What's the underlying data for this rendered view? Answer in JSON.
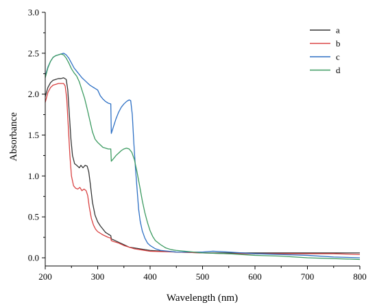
{
  "chart_data": {
    "type": "line",
    "title": "",
    "xlabel": "Wavelength (nm)",
    "ylabel": "Absorbance",
    "xlim": [
      200,
      800
    ],
    "ylim": [
      -0.1,
      3.0
    ],
    "x_ticks": [
      "200",
      "300",
      "400",
      "500",
      "600",
      "700",
      "800"
    ],
    "y_ticks": [
      "0.0",
      "0.5",
      "1.0",
      "1.5",
      "2.0",
      "2.5",
      "3.0"
    ],
    "grid": false,
    "legend_position": "top-right",
    "series": [
      {
        "name": "a",
        "color": "#333333",
        "points": [
          [
            200,
            1.97
          ],
          [
            205,
            2.08
          ],
          [
            210,
            2.14
          ],
          [
            215,
            2.17
          ],
          [
            220,
            2.18
          ],
          [
            225,
            2.19
          ],
          [
            230,
            2.19
          ],
          [
            235,
            2.2
          ],
          [
            240,
            2.18
          ],
          [
            243,
            2.05
          ],
          [
            246,
            1.75
          ],
          [
            249,
            1.45
          ],
          [
            252,
            1.25
          ],
          [
            256,
            1.15
          ],
          [
            260,
            1.13
          ],
          [
            265,
            1.1
          ],
          [
            268,
            1.13
          ],
          [
            272,
            1.1
          ],
          [
            276,
            1.13
          ],
          [
            280,
            1.12
          ],
          [
            283,
            1.05
          ],
          [
            286,
            0.9
          ],
          [
            290,
            0.68
          ],
          [
            295,
            0.52
          ],
          [
            300,
            0.44
          ],
          [
            305,
            0.39
          ],
          [
            310,
            0.35
          ],
          [
            315,
            0.31
          ],
          [
            320,
            0.29
          ],
          [
            325,
            0.27
          ],
          [
            326,
            0.23
          ],
          [
            330,
            0.22
          ],
          [
            340,
            0.19
          ],
          [
            350,
            0.16
          ],
          [
            360,
            0.13
          ],
          [
            370,
            0.12
          ],
          [
            380,
            0.11
          ],
          [
            400,
            0.09
          ],
          [
            450,
            0.07
          ],
          [
            500,
            0.06
          ],
          [
            550,
            0.06
          ],
          [
            600,
            0.06
          ],
          [
            650,
            0.06
          ],
          [
            700,
            0.06
          ],
          [
            750,
            0.06
          ],
          [
            800,
            0.06
          ]
        ]
      },
      {
        "name": "b",
        "color": "#d94040",
        "points": [
          [
            200,
            1.9
          ],
          [
            205,
            2.02
          ],
          [
            210,
            2.08
          ],
          [
            215,
            2.11
          ],
          [
            220,
            2.12
          ],
          [
            225,
            2.13
          ],
          [
            230,
            2.13
          ],
          [
            235,
            2.13
          ],
          [
            238,
            2.1
          ],
          [
            241,
            1.95
          ],
          [
            244,
            1.6
          ],
          [
            247,
            1.25
          ],
          [
            250,
            1.0
          ],
          [
            254,
            0.88
          ],
          [
            258,
            0.85
          ],
          [
            262,
            0.84
          ],
          [
            266,
            0.86
          ],
          [
            270,
            0.82
          ],
          [
            274,
            0.84
          ],
          [
            278,
            0.82
          ],
          [
            281,
            0.76
          ],
          [
            284,
            0.62
          ],
          [
            288,
            0.48
          ],
          [
            292,
            0.4
          ],
          [
            296,
            0.35
          ],
          [
            300,
            0.32
          ],
          [
            310,
            0.28
          ],
          [
            320,
            0.25
          ],
          [
            325,
            0.24
          ],
          [
            326,
            0.21
          ],
          [
            330,
            0.2
          ],
          [
            340,
            0.18
          ],
          [
            350,
            0.15
          ],
          [
            360,
            0.13
          ],
          [
            370,
            0.11
          ],
          [
            380,
            0.1
          ],
          [
            400,
            0.08
          ],
          [
            450,
            0.07
          ],
          [
            500,
            0.06
          ],
          [
            550,
            0.05
          ],
          [
            600,
            0.05
          ],
          [
            650,
            0.05
          ],
          [
            700,
            0.05
          ],
          [
            750,
            0.05
          ],
          [
            800,
            0.04
          ]
        ]
      },
      {
        "name": "c",
        "color": "#2c6fc4",
        "points": [
          [
            200,
            2.22
          ],
          [
            205,
            2.33
          ],
          [
            210,
            2.4
          ],
          [
            215,
            2.45
          ],
          [
            220,
            2.47
          ],
          [
            225,
            2.48
          ],
          [
            230,
            2.49
          ],
          [
            235,
            2.5
          ],
          [
            240,
            2.48
          ],
          [
            245,
            2.44
          ],
          [
            250,
            2.38
          ],
          [
            255,
            2.32
          ],
          [
            260,
            2.28
          ],
          [
            265,
            2.24
          ],
          [
            270,
            2.2
          ],
          [
            275,
            2.17
          ],
          [
            280,
            2.14
          ],
          [
            285,
            2.11
          ],
          [
            290,
            2.09
          ],
          [
            295,
            2.07
          ],
          [
            300,
            2.05
          ],
          [
            305,
            1.98
          ],
          [
            310,
            1.94
          ],
          [
            315,
            1.91
          ],
          [
            320,
            1.89
          ],
          [
            325,
            1.88
          ],
          [
            326,
            1.52
          ],
          [
            330,
            1.6
          ],
          [
            335,
            1.7
          ],
          [
            340,
            1.78
          ],
          [
            345,
            1.84
          ],
          [
            350,
            1.88
          ],
          [
            355,
            1.91
          ],
          [
            360,
            1.93
          ],
          [
            363,
            1.92
          ],
          [
            366,
            1.75
          ],
          [
            369,
            1.4
          ],
          [
            372,
            1.1
          ],
          [
            375,
            0.85
          ],
          [
            378,
            0.6
          ],
          [
            381,
            0.45
          ],
          [
            385,
            0.33
          ],
          [
            390,
            0.24
          ],
          [
            395,
            0.18
          ],
          [
            400,
            0.15
          ],
          [
            410,
            0.11
          ],
          [
            420,
            0.09
          ],
          [
            450,
            0.07
          ],
          [
            500,
            0.07
          ],
          [
            520,
            0.08
          ],
          [
            550,
            0.07
          ],
          [
            600,
            0.05
          ],
          [
            650,
            0.04
          ],
          [
            700,
            0.03
          ],
          [
            750,
            0.01
          ],
          [
            800,
            0.0
          ]
        ]
      },
      {
        "name": "d",
        "color": "#3b9a60",
        "points": [
          [
            200,
            2.2
          ],
          [
            205,
            2.32
          ],
          [
            210,
            2.4
          ],
          [
            215,
            2.45
          ],
          [
            220,
            2.47
          ],
          [
            225,
            2.48
          ],
          [
            230,
            2.49
          ],
          [
            235,
            2.48
          ],
          [
            240,
            2.44
          ],
          [
            245,
            2.38
          ],
          [
            250,
            2.31
          ],
          [
            255,
            2.26
          ],
          [
            260,
            2.22
          ],
          [
            265,
            2.15
          ],
          [
            270,
            2.05
          ],
          [
            275,
            1.95
          ],
          [
            280,
            1.82
          ],
          [
            285,
            1.68
          ],
          [
            290,
            1.54
          ],
          [
            295,
            1.45
          ],
          [
            300,
            1.41
          ],
          [
            305,
            1.38
          ],
          [
            310,
            1.35
          ],
          [
            315,
            1.34
          ],
          [
            320,
            1.33
          ],
          [
            325,
            1.33
          ],
          [
            326,
            1.18
          ],
          [
            330,
            1.21
          ],
          [
            335,
            1.25
          ],
          [
            340,
            1.28
          ],
          [
            345,
            1.31
          ],
          [
            350,
            1.33
          ],
          [
            355,
            1.34
          ],
          [
            360,
            1.33
          ],
          [
            365,
            1.29
          ],
          [
            370,
            1.2
          ],
          [
            375,
            1.05
          ],
          [
            380,
            0.88
          ],
          [
            385,
            0.7
          ],
          [
            390,
            0.55
          ],
          [
            395,
            0.43
          ],
          [
            400,
            0.33
          ],
          [
            405,
            0.26
          ],
          [
            410,
            0.21
          ],
          [
            420,
            0.16
          ],
          [
            430,
            0.12
          ],
          [
            440,
            0.1
          ],
          [
            450,
            0.09
          ],
          [
            500,
            0.06
          ],
          [
            550,
            0.05
          ],
          [
            600,
            0.03
          ],
          [
            650,
            0.02
          ],
          [
            700,
            0.0
          ],
          [
            750,
            -0.01
          ],
          [
            800,
            -0.02
          ]
        ]
      }
    ]
  }
}
